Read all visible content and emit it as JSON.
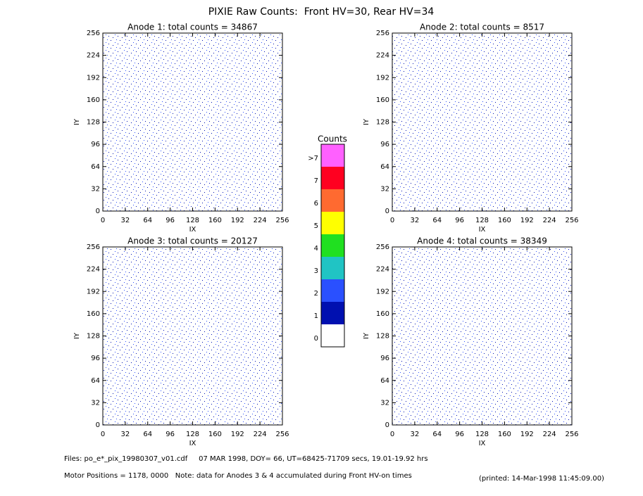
{
  "page": {
    "title": "PIXIE Raw Counts:  Front HV=30, Rear HV=34",
    "footer": [
      "Files: po_e*_pix_19980307_v01.cdf     07 MAR 1998, DOY= 66, UT=68425-71709 secs, 19.01-19.92 hrs",
      "Motor Positions = 1178, 0000   Note: data for Anodes 3 & 4 accumulated during Front HV-on times",
      "(printed: 14-Mar-1998 11:45:09.00)"
    ]
  },
  "colorbar": {
    "title": "Counts",
    "levels": [
      0,
      1,
      2,
      3,
      4,
      5,
      6,
      7
    ],
    "top_label": ">7",
    "colors": [
      "#ffffff",
      "#0010b0",
      "#2a50ff",
      "#20c4c4",
      "#20e020",
      "#ffff00",
      "#ff6a30",
      "#ff0020",
      "#ff60ff"
    ]
  },
  "chart_data": [
    {
      "type": "heatmap",
      "title": "Anode 1: total counts = 34867",
      "xlabel": "IX",
      "ylabel": "IY",
      "xlim": [
        0,
        256
      ],
      "ylim": [
        0,
        256
      ],
      "xticks": [
        0,
        32,
        64,
        96,
        128,
        160,
        192,
        224,
        256
      ],
      "yticks": [
        0,
        32,
        64,
        96,
        128,
        160,
        192,
        224,
        256
      ]
    },
    {
      "type": "heatmap",
      "title": "Anode 2: total counts = 8517",
      "xlabel": "IX",
      "ylabel": "IY",
      "xlim": [
        0,
        256
      ],
      "ylim": [
        0,
        256
      ],
      "xticks": [
        0,
        32,
        64,
        96,
        128,
        160,
        192,
        224,
        256
      ],
      "yticks": [
        0,
        32,
        64,
        96,
        128,
        160,
        192,
        224,
        256
      ]
    },
    {
      "type": "heatmap",
      "title": "Anode 3: total counts = 20127",
      "xlabel": "IX",
      "ylabel": "IY",
      "xlim": [
        0,
        256
      ],
      "ylim": [
        0,
        256
      ],
      "xticks": [
        0,
        32,
        64,
        96,
        128,
        160,
        192,
        224,
        256
      ],
      "yticks": [
        0,
        32,
        64,
        96,
        128,
        160,
        192,
        224,
        256
      ]
    },
    {
      "type": "heatmap",
      "title": "Anode 4: total counts = 38349",
      "xlabel": "IX",
      "ylabel": "IY",
      "xlim": [
        0,
        256
      ],
      "ylim": [
        0,
        256
      ],
      "xticks": [
        0,
        32,
        64,
        96,
        128,
        160,
        192,
        224,
        256
      ],
      "yticks": [
        0,
        32,
        64,
        96,
        128,
        160,
        192,
        224,
        256
      ]
    }
  ]
}
